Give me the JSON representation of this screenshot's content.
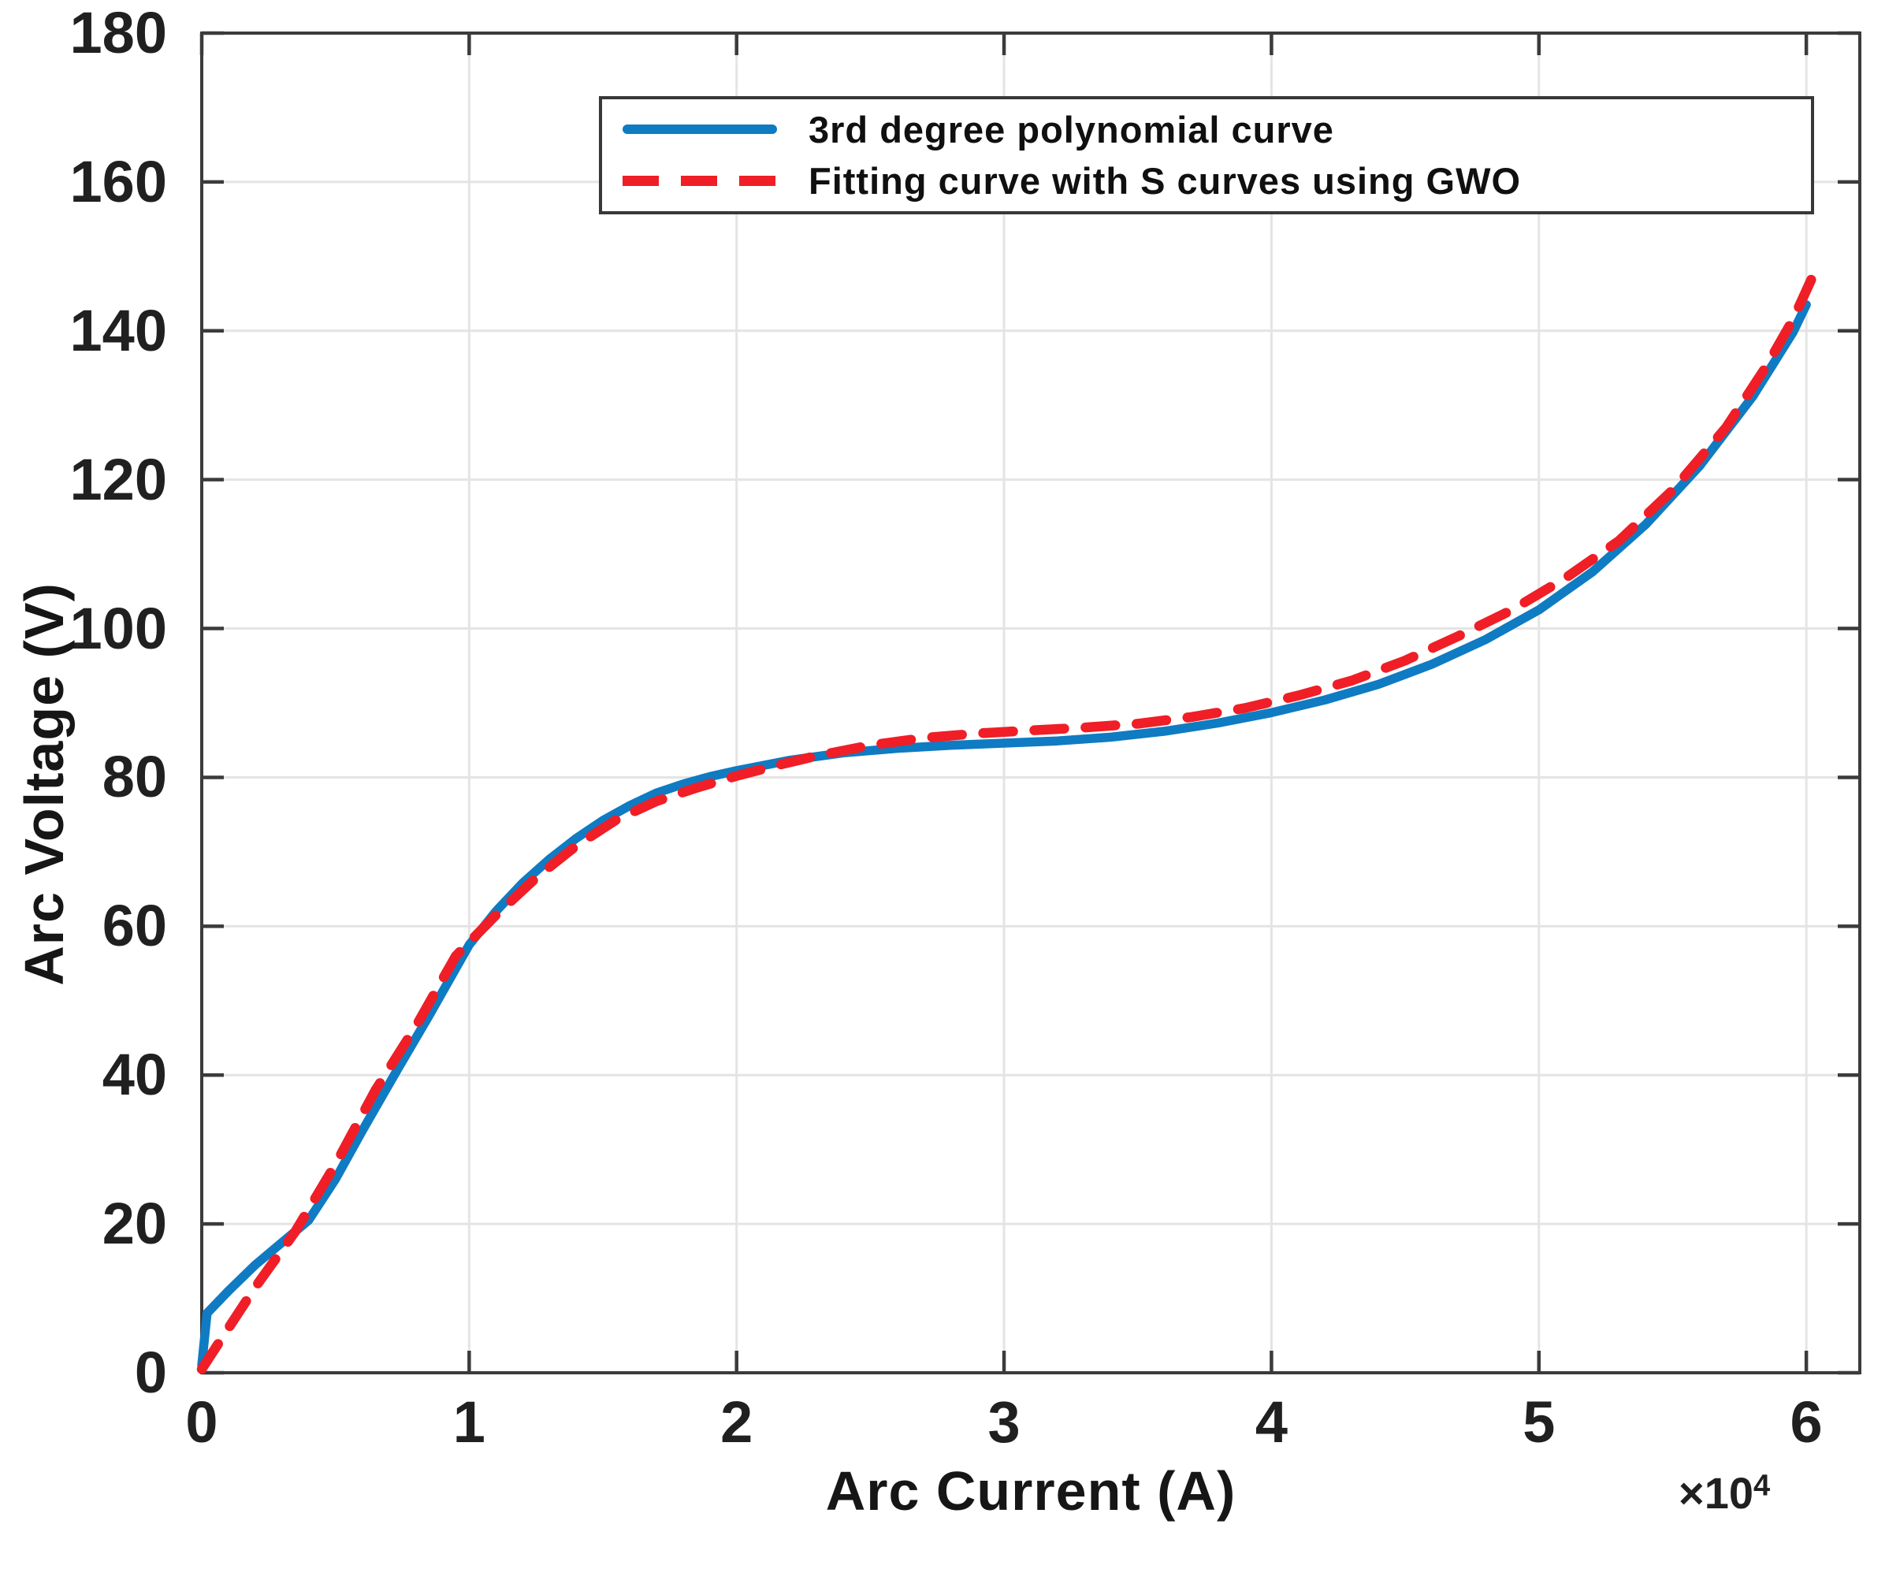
{
  "figure": {
    "background": "#ffffff",
    "grid_color": "#e4e4e4",
    "spine_color": "#3b3b3b",
    "x_axis": {
      "label": "Arc Current (A)",
      "multiplier": "×10",
      "multiplier_exp": "4",
      "tick_labels": [
        "0",
        "1",
        "2",
        "3",
        "4",
        "5",
        "6"
      ],
      "tick_values": [
        0,
        1,
        2,
        3,
        4,
        5,
        6
      ],
      "grid_values": [
        1,
        2,
        3,
        4,
        5,
        6
      ],
      "min": 0,
      "max": 6.2
    },
    "y_axis": {
      "label": "Arc Voltage (V)",
      "tick_labels": [
        "0",
        "20",
        "40",
        "60",
        "80",
        "100",
        "120",
        "140",
        "160",
        "180"
      ],
      "tick_values": [
        0,
        20,
        40,
        60,
        80,
        100,
        120,
        140,
        160,
        180
      ],
      "grid_values": [
        20,
        40,
        60,
        80,
        100,
        120,
        140,
        160
      ],
      "min": 0,
      "max": 180
    },
    "legend": {
      "entries": [
        {
          "label": "3rd degree polynomial curve",
          "color": "#0f7bc2",
          "style": "solid"
        },
        {
          "label": "Fitting curve with S curves using GWO",
          "color": "#f01e26",
          "style": "dashed"
        }
      ]
    }
  },
  "chart_data": {
    "type": "line",
    "title": "",
    "xlabel": "Arc Current (A)",
    "ylabel": "Arc Voltage (V)",
    "x_unit_multiplier": "×10^4",
    "xlim": [
      0,
      6.2
    ],
    "ylim": [
      0,
      180
    ],
    "grid": true,
    "legend_position": "top-center",
    "series": [
      {
        "name": "3rd degree polynomial curve",
        "color": "#0f7bc2",
        "style": "solid",
        "width": 11.5,
        "x": [
          0,
          0.02,
          0.1,
          0.2,
          0.3,
          0.4,
          0.5,
          0.6,
          0.72,
          0.85,
          1.0,
          1.1,
          1.2,
          1.3,
          1.4,
          1.5,
          1.6,
          1.7,
          1.8,
          1.9,
          2.0,
          2.2,
          2.4,
          2.6,
          2.8,
          3.0,
          3.2,
          3.4,
          3.6,
          3.8,
          4.0,
          4.2,
          4.4,
          4.6,
          4.8,
          5.0,
          5.2,
          5.4,
          5.6,
          5.8,
          5.95,
          6.0
        ],
        "y": [
          1,
          8,
          11,
          14.5,
          17.5,
          20.5,
          26,
          32.5,
          40,
          48,
          57.5,
          62,
          65.8,
          69,
          71.8,
          74.2,
          76.2,
          77.9,
          79.1,
          80.1,
          80.9,
          82.3,
          83.3,
          83.9,
          84.3,
          84.6,
          84.9,
          85.4,
          86.2,
          87.3,
          88.7,
          90.4,
          92.5,
          95.2,
          98.5,
          102.5,
          107.6,
          114,
          121.8,
          131.2,
          139.8,
          143.5
        ]
      },
      {
        "name": "Fitting curve with S curves using GWO",
        "color": "#f01e26",
        "style": "dashed",
        "width": 12.5,
        "dash": [
          38,
          27
        ],
        "x": [
          0,
          0.1,
          0.2,
          0.35,
          0.5,
          0.65,
          0.8,
          0.95,
          1.1,
          1.25,
          1.4,
          1.55,
          1.7,
          1.85,
          2.0,
          2.15,
          2.3,
          2.5,
          2.7,
          2.9,
          3.1,
          3.3,
          3.5,
          3.7,
          3.9,
          4.1,
          4.3,
          4.5,
          4.7,
          4.9,
          5.1,
          5.3,
          5.5,
          5.7,
          5.85,
          5.95,
          6.02
        ],
        "y": [
          0.5,
          6,
          11.5,
          19,
          28,
          38,
          46.5,
          56,
          61.5,
          66.5,
          70.8,
          74.3,
          76.8,
          78.6,
          80.2,
          81.6,
          82.9,
          84.3,
          85.3,
          85.9,
          86.3,
          86.7,
          87.2,
          88.1,
          89.3,
          91,
          93,
          95.7,
          99,
          102.5,
          106.8,
          111.8,
          118.6,
          127,
          135.2,
          141.5,
          147
        ]
      }
    ]
  }
}
